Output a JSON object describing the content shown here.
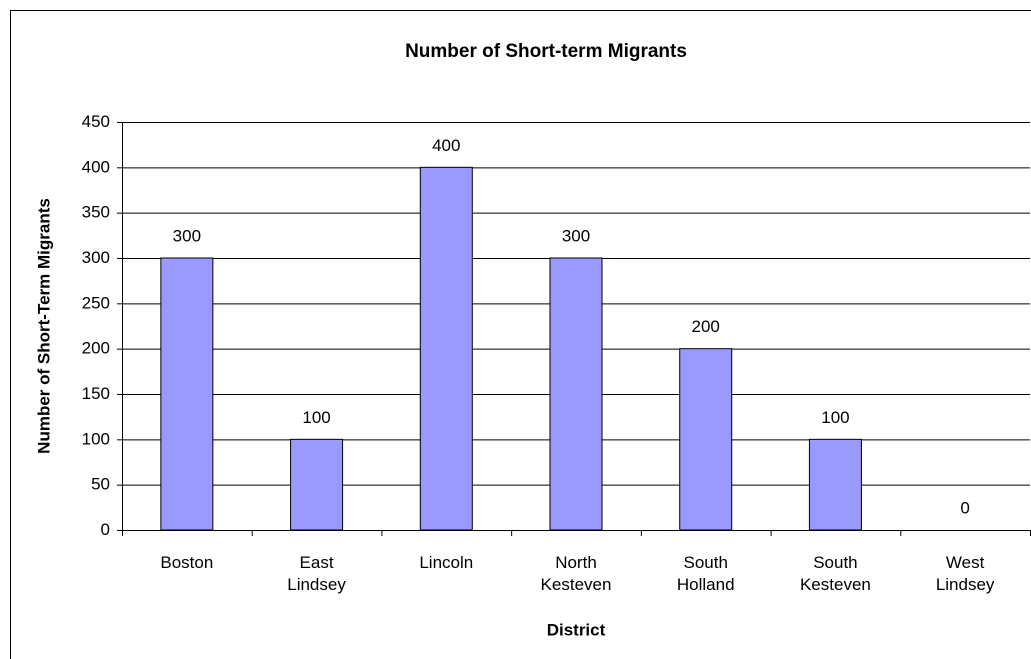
{
  "chart_data": {
    "type": "bar",
    "title": "Number of Short-term Migrants",
    "x_label": "District",
    "y_label": "Number of Short-Term Migrants",
    "categories": [
      "Boston",
      "East Lindsey",
      "Lincoln",
      "North Kesteven",
      "South Holland",
      "South Kesteven",
      "West Lindsey"
    ],
    "values": [
      300,
      100,
      400,
      300,
      200,
      100,
      0
    ],
    "color": "#9999ff",
    "ylim": [
      0,
      450
    ],
    "yticks": [
      0,
      50,
      100,
      150,
      200,
      250,
      300,
      350,
      400,
      450
    ],
    "grid": true
  }
}
